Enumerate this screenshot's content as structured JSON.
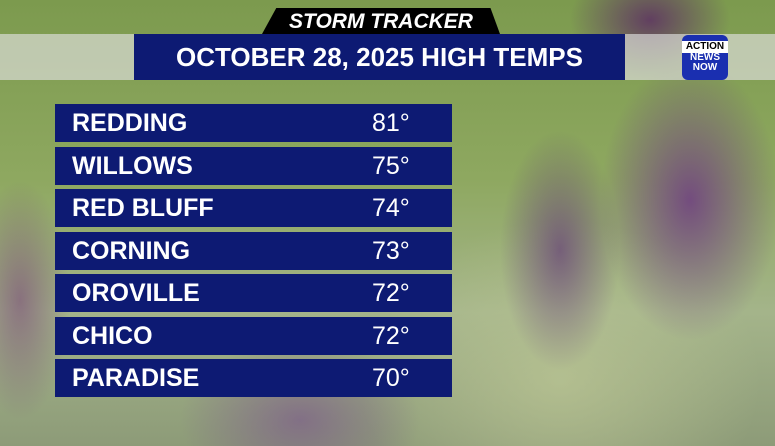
{
  "header": {
    "tag": "STORM TRACKER",
    "title": "OCTOBER 28, 2025 HIGH TEMPS"
  },
  "logo": {
    "line1": "ACTION",
    "line2": "NEWS",
    "line3": "NOW"
  },
  "rows": [
    {
      "city": "REDDING",
      "temp": "81°"
    },
    {
      "city": "WILLOWS",
      "temp": "75°"
    },
    {
      "city": "RED BLUFF",
      "temp": "74°"
    },
    {
      "city": "CORNING",
      "temp": "73°"
    },
    {
      "city": "OROVILLE",
      "temp": "72°"
    },
    {
      "city": "CHICO",
      "temp": "72°"
    },
    {
      "city": "PARADISE",
      "temp": "70°"
    }
  ],
  "colors": {
    "panel": "#0d1a73",
    "tab": "#000000"
  }
}
